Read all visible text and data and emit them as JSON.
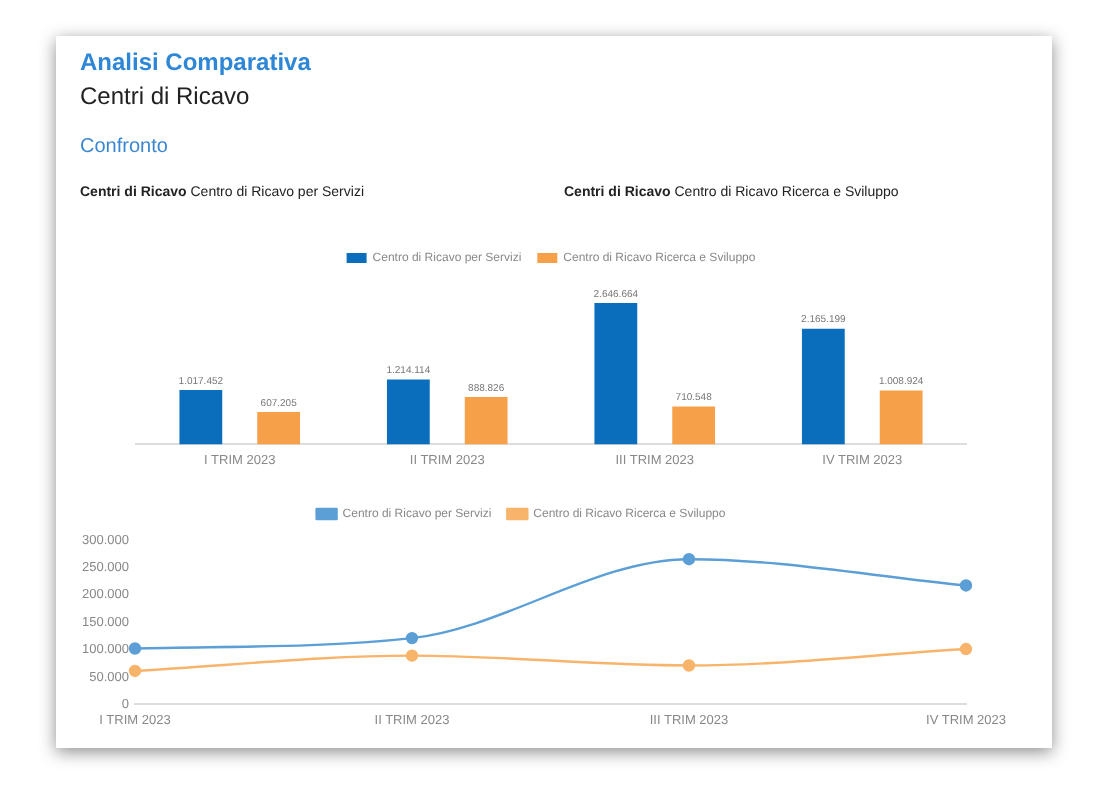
{
  "chart_data": [
    {
      "type": "bar",
      "title": "Analisi Comparativa",
      "subtitle": "Centri di Ricavo",
      "annotations": [
        "Confronto",
        "Centri di Ricavo Centro di Ricavo per Servizi",
        "Centri di Ricavo Centro di Ricavo Ricerca e Sviluppo"
      ],
      "categories": [
        "I TRIM 2023",
        "II TRIM 2023",
        "III TRIM 2023",
        "IV TRIM 2023"
      ],
      "series": [
        {
          "name": "Centro di Ricavo per Servizi",
          "color": "#0a6ebd",
          "values": [
            1017452,
            1214114,
            2646664,
            2165199
          ],
          "value_labels": [
            "1.017.452",
            "1.214.114",
            "2.646.664",
            "2.165.199"
          ]
        },
        {
          "name": "Centro di Ricavo Ricerca e Sviluppo",
          "color": "#f7a04a",
          "values": [
            607205,
            888826,
            710548,
            1008924
          ],
          "value_labels": [
            "607.205",
            "888.826",
            "710.548",
            "1.008.924"
          ]
        }
      ],
      "legend": "top",
      "grid": false
    },
    {
      "type": "line",
      "categories": [
        "I TRIM 2023",
        "II TRIM 2023",
        "III TRIM 2023",
        "IV TRIM 2023"
      ],
      "series": [
        {
          "name": "Centro di Ricavo per Servizi",
          "color": "#5b9fd6",
          "values": [
            102000,
            121000,
            265000,
            217000
          ]
        },
        {
          "name": "Centro di Ricavo Ricerca e Sviluppo",
          "color": "#f7b46a",
          "values": [
            61000,
            89000,
            71000,
            101000
          ]
        }
      ],
      "ylim": [
        0,
        300000
      ],
      "yticks": [
        {
          "value": 0,
          "label": "0"
        },
        {
          "value": 50000,
          "label": "50.000"
        },
        {
          "value": 100000,
          "label": "100.000"
        },
        {
          "value": 150000,
          "label": "150.000"
        },
        {
          "value": 200000,
          "label": "200.000"
        },
        {
          "value": 250000,
          "label": "250.000"
        },
        {
          "value": 300000,
          "label": "300.000"
        }
      ],
      "legend": "top",
      "grid": false,
      "marker": "circle",
      "line_style": "solid"
    }
  ]
}
